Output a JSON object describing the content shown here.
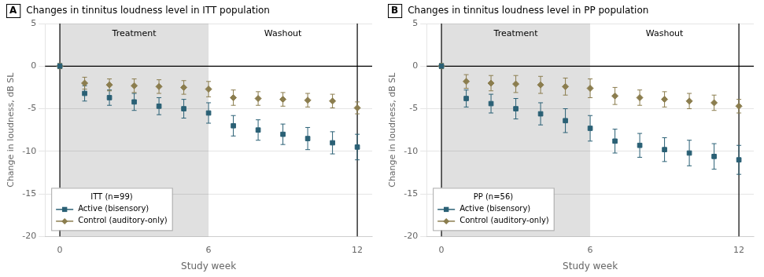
{
  "chart_data": [
    {
      "type": "scatter",
      "panel_label": "A",
      "title": "Changes in tinnitus loudness level in ITT population",
      "xlabel": "Study week",
      "ylabel": "Change in loudness, dB SL",
      "xlim": [
        -0.6,
        12.6
      ],
      "xticks": [
        0,
        6,
        12
      ],
      "ylim": [
        -20,
        5
      ],
      "yticks": [
        -20,
        -15,
        -10,
        -5,
        0,
        5
      ],
      "grid": "y",
      "legend": "lower left",
      "legend_title": "ITT (n=99)",
      "series": [
        {
          "name": "Active (bisensory)",
          "color": "#2a6075",
          "marker": "square",
          "x": [
            0,
            1,
            2,
            3,
            4,
            5,
            6,
            7,
            8,
            9,
            10,
            11,
            12
          ],
          "values": [
            0,
            -3.2,
            -3.7,
            -4.2,
            -4.7,
            -5.0,
            -5.5,
            -7.0,
            -7.5,
            -8.0,
            -8.5,
            -9.0,
            -9.5
          ],
          "error": [
            0.3,
            0.9,
            0.9,
            1.0,
            1.0,
            1.1,
            1.2,
            1.2,
            1.2,
            1.2,
            1.3,
            1.3,
            1.5
          ]
        },
        {
          "name": "Control (auditory-only)",
          "color": "#8b7d4e",
          "marker": "diamond",
          "x": [
            0,
            1,
            2,
            3,
            4,
            5,
            6,
            7,
            8,
            9,
            10,
            11,
            12
          ],
          "values": [
            0,
            -2.0,
            -2.2,
            -2.3,
            -2.4,
            -2.5,
            -2.7,
            -3.7,
            -3.8,
            -3.9,
            -4.0,
            -4.1,
            -4.9
          ],
          "error": [
            0.3,
            0.7,
            0.7,
            0.8,
            0.8,
            0.8,
            0.9,
            0.9,
            0.8,
            0.8,
            0.8,
            0.8,
            0.7
          ]
        }
      ],
      "annotations": [
        {
          "text": "Treatment",
          "x": 3,
          "y": 4.3
        },
        {
          "text": "Washout",
          "x": 9,
          "y": 4.3
        }
      ],
      "shaded": [
        {
          "x0": 0,
          "x1": 6,
          "color": "#e0e0e0"
        }
      ],
      "vlines": [
        0,
        12
      ],
      "hlines": [
        0
      ]
    },
    {
      "type": "scatter",
      "panel_label": "B",
      "title": "Changes in tinnitus loudness level in PP population",
      "xlabel": "Study week",
      "ylabel": "Change in loudness, dB SL",
      "xlim": [
        -0.6,
        12.6
      ],
      "xticks": [
        0,
        6,
        12
      ],
      "ylim": [
        -20,
        5
      ],
      "yticks": [
        -20,
        -15,
        -10,
        -5,
        0,
        5
      ],
      "grid": "y",
      "legend": "lower left",
      "legend_title": "PP (n=56)",
      "series": [
        {
          "name": "Active (bisensory)",
          "color": "#2a6075",
          "marker": "square",
          "x": [
            0,
            1,
            2,
            3,
            4,
            5,
            6,
            7,
            8,
            9,
            10,
            11,
            12
          ],
          "values": [
            0,
            -3.8,
            -4.4,
            -5.0,
            -5.6,
            -6.4,
            -7.3,
            -8.8,
            -9.3,
            -9.8,
            -10.2,
            -10.6,
            -11.0
          ],
          "error": [
            0.3,
            1.0,
            1.1,
            1.2,
            1.3,
            1.4,
            1.5,
            1.4,
            1.4,
            1.4,
            1.5,
            1.5,
            1.7
          ]
        },
        {
          "name": "Control (auditory-only)",
          "color": "#8b7d4e",
          "marker": "diamond",
          "x": [
            0,
            1,
            2,
            3,
            4,
            5,
            6,
            7,
            8,
            9,
            10,
            11,
            12
          ],
          "values": [
            0,
            -1.8,
            -2.0,
            -2.1,
            -2.2,
            -2.4,
            -2.6,
            -3.5,
            -3.7,
            -3.9,
            -4.1,
            -4.3,
            -4.7
          ],
          "error": [
            0.3,
            0.8,
            0.9,
            1.0,
            1.0,
            1.0,
            1.1,
            1.0,
            0.9,
            0.9,
            0.9,
            0.9,
            0.8
          ]
        }
      ],
      "annotations": [
        {
          "text": "Treatment",
          "x": 3,
          "y": 4.3
        },
        {
          "text": "Washout",
          "x": 9,
          "y": 4.3
        }
      ],
      "shaded": [
        {
          "x0": 0,
          "x1": 6,
          "color": "#e0e0e0"
        }
      ],
      "vlines": [
        0,
        12
      ],
      "hlines": [
        0
      ]
    }
  ]
}
